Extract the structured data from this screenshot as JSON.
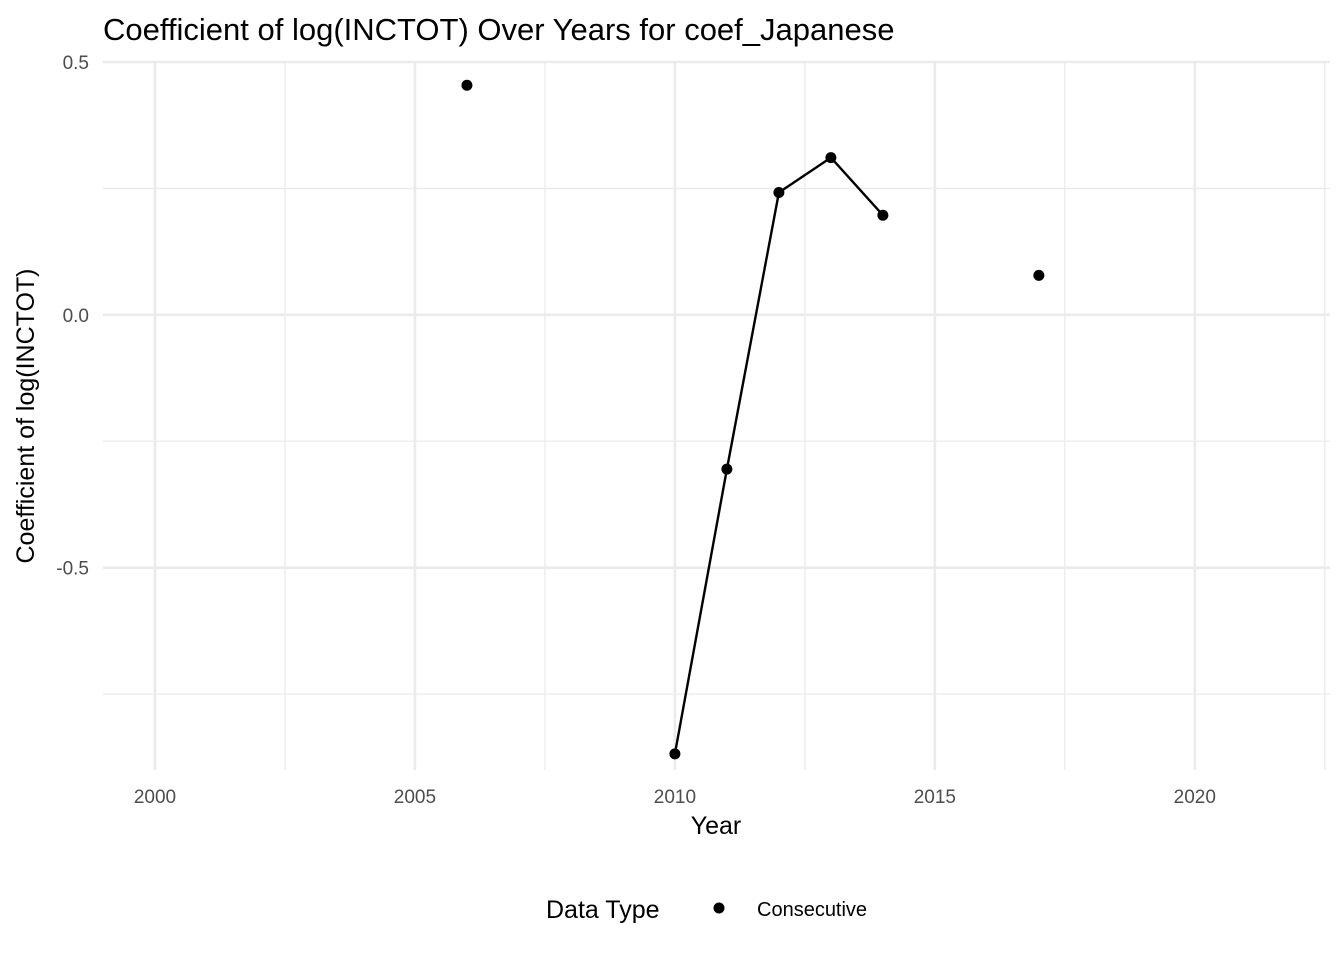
{
  "chart_data": {
    "type": "line",
    "title": "Coefficient of log(INCTOT) Over Years for coef_Japanese",
    "xlabel": "Year",
    "ylabel": "Coefficient of log(INCTOT)",
    "xlim": [
      1999,
      2022.6
    ],
    "ylim": [
      -0.9,
      0.5
    ],
    "x_ticks": [
      2000,
      2005,
      2010,
      2015,
      2020
    ],
    "x_tick_labels": [
      "2000",
      "2005",
      "2010",
      "2015",
      "2020"
    ],
    "y_ticks": [
      -0.5,
      0.0,
      0.5
    ],
    "y_tick_labels": [
      "-0.5",
      "0.0",
      "0.5"
    ],
    "grid": true,
    "legend": {
      "title": "Data Type",
      "position": "bottom",
      "entries": [
        {
          "label": "Consecutive",
          "marker": "point",
          "color": "#000000"
        }
      ]
    },
    "series": [
      {
        "name": "Consecutive",
        "color": "#000000",
        "points": [
          {
            "x": 2006,
            "y": 0.454
          },
          {
            "x": 2010,
            "y": -0.868
          },
          {
            "x": 2011,
            "y": -0.305
          },
          {
            "x": 2012,
            "y": 0.242
          },
          {
            "x": 2013,
            "y": 0.311
          },
          {
            "x": 2014,
            "y": 0.197
          },
          {
            "x": 2017,
            "y": 0.078
          }
        ],
        "connected_runs": [
          [
            2010,
            2011,
            2012,
            2013,
            2014
          ]
        ]
      }
    ]
  }
}
